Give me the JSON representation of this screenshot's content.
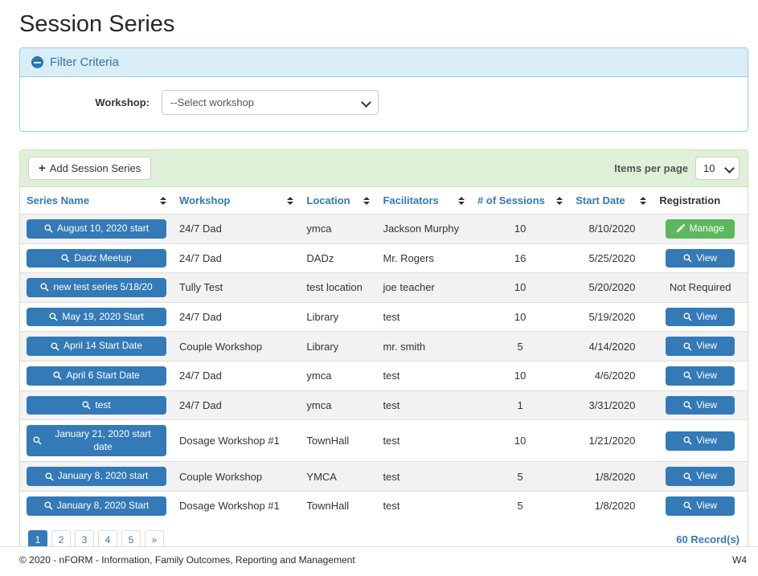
{
  "page": {
    "title": "Session Series",
    "footer_text": "© 2020 - nFORM - Information, Family Outcomes, Reporting and Management",
    "footer_right": "W4"
  },
  "filter": {
    "title": "Filter Criteria",
    "collapse_icon": "minus-circle-icon",
    "workshop_label": "Workshop:",
    "workshop_selected": "--Select workshop"
  },
  "toolbar": {
    "add_icon": "+",
    "add_button_label": "Add Session Series",
    "items_per_page_label": "Items per page",
    "items_per_page_value": "10"
  },
  "table": {
    "columns": [
      {
        "label": "Series Name",
        "sortable": true
      },
      {
        "label": "Workshop",
        "sortable": true
      },
      {
        "label": "Location",
        "sortable": true
      },
      {
        "label": "Facilitators",
        "sortable": true
      },
      {
        "label": "# of Sessions",
        "sortable": true
      },
      {
        "label": "Start Date",
        "sortable": true
      },
      {
        "label": "Registration",
        "sortable": false
      }
    ],
    "rows": [
      {
        "series_name": "August 10, 2020 start",
        "workshop": "24/7 Dad",
        "location": "ymca",
        "facilitators": "Jackson Murphy",
        "sessions": "10",
        "start_date": "8/10/2020",
        "registration": {
          "type": "manage",
          "label": "Manage"
        }
      },
      {
        "series_name": "Dadz Meetup",
        "workshop": "24/7 Dad",
        "location": "DADz",
        "facilitators": "Mr. Rogers",
        "sessions": "16",
        "start_date": "5/25/2020",
        "registration": {
          "type": "view",
          "label": "View"
        }
      },
      {
        "series_name": "new test series 5/18/20",
        "workshop": "Tully Test",
        "location": "test location",
        "facilitators": "joe teacher",
        "sessions": "10",
        "start_date": "5/20/2020",
        "registration": {
          "type": "none",
          "label": "Not Required"
        }
      },
      {
        "series_name": "May 19, 2020 Start",
        "workshop": "24/7 Dad",
        "location": "Library",
        "facilitators": "test",
        "sessions": "10",
        "start_date": "5/19/2020",
        "registration": {
          "type": "view",
          "label": "View"
        }
      },
      {
        "series_name": "April 14 Start Date",
        "workshop": "Couple Workshop",
        "location": "Library",
        "facilitators": "mr. smith",
        "sessions": "5",
        "start_date": "4/14/2020",
        "registration": {
          "type": "view",
          "label": "View"
        }
      },
      {
        "series_name": "April 6 Start Date",
        "workshop": "24/7 Dad",
        "location": "ymca",
        "facilitators": "test",
        "sessions": "10",
        "start_date": "4/6/2020",
        "registration": {
          "type": "view",
          "label": "View"
        }
      },
      {
        "series_name": "test",
        "workshop": "24/7 Dad",
        "location": "ymca",
        "facilitators": "test",
        "sessions": "1",
        "start_date": "3/31/2020",
        "registration": {
          "type": "view",
          "label": "View"
        }
      },
      {
        "series_name": "January 21, 2020 start date",
        "workshop": "Dosage Workshop #1",
        "location": "TownHall",
        "facilitators": "test",
        "sessions": "10",
        "start_date": "1/21/2020",
        "registration": {
          "type": "view",
          "label": "View"
        }
      },
      {
        "series_name": "January 8, 2020 start",
        "workshop": "Couple Workshop",
        "location": "YMCA",
        "facilitators": "test",
        "sessions": "5",
        "start_date": "1/8/2020",
        "registration": {
          "type": "view",
          "label": "View"
        }
      },
      {
        "series_name": "January 8, 2020 Start",
        "workshop": "Dosage Workshop #1",
        "location": "TownHall",
        "facilitators": "test",
        "sessions": "5",
        "start_date": "1/8/2020",
        "registration": {
          "type": "view",
          "label": "View"
        }
      }
    ]
  },
  "pagination": {
    "pages": [
      "1",
      "2",
      "3",
      "4",
      "5",
      "»"
    ],
    "active": "1",
    "records_text": "60 Record(s)"
  },
  "colors": {
    "primary_blue": "#337ab7",
    "success_green": "#5cb85c",
    "filter_header_bg": "#d9edf7",
    "filter_border": "#9acfea",
    "table_header_bg": "#dff0d8",
    "table_panel_border": "#cbe3b3",
    "row_stripe": "#f2f2f2"
  }
}
